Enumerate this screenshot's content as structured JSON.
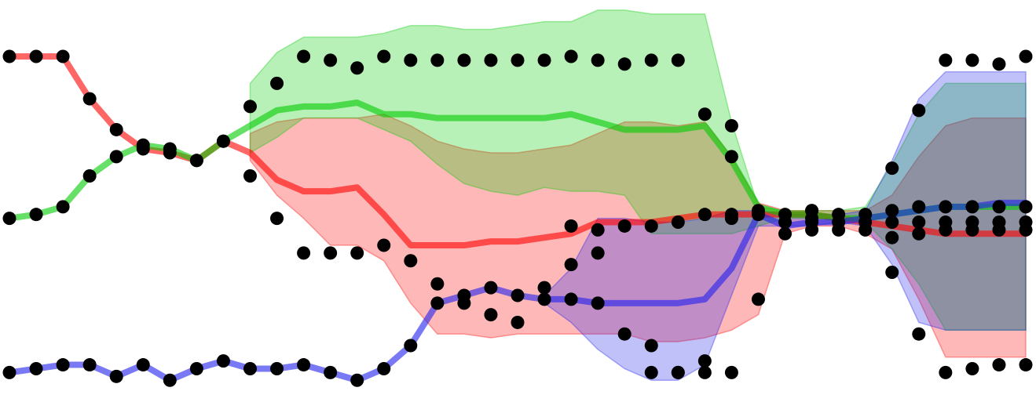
{
  "chart_data": {
    "type": "line",
    "x": [
      0,
      1,
      2,
      3,
      4,
      5,
      6,
      7,
      8,
      9,
      10,
      11,
      12,
      13,
      14,
      15,
      16,
      17,
      18,
      19,
      20,
      21,
      22,
      23,
      24,
      25,
      26,
      27,
      28,
      29,
      30,
      31,
      32,
      33,
      34,
      35,
      36,
      37,
      38
    ],
    "xlim": [
      0,
      38
    ],
    "ylim": [
      0,
      1
    ],
    "grid": false,
    "legend": "none",
    "series": [
      {
        "color": "#ff0000",
        "values": [
          0.87,
          0.87,
          0.87,
          0.76,
          0.68,
          0.63,
          0.62,
          0.6,
          0.65,
          0.62,
          0.55,
          0.52,
          0.52,
          0.53,
          0.46,
          0.38,
          0.38,
          0.38,
          0.39,
          0.39,
          0.4,
          0.41,
          0.44,
          0.44,
          0.44,
          0.45,
          0.46,
          0.46,
          0.46,
          0.46,
          0.46,
          0.45,
          0.44,
          0.43,
          0.42,
          0.41,
          0.41,
          0.41,
          0.41
        ],
        "lower": [
          null,
          null,
          null,
          null,
          null,
          null,
          null,
          null,
          null,
          0.6,
          0.51,
          0.45,
          0.38,
          0.38,
          0.34,
          0.23,
          0.15,
          0.15,
          0.14,
          0.15,
          0.15,
          0.15,
          0.15,
          0.15,
          0.13,
          0.13,
          0.14,
          0.16,
          0.2,
          0.41,
          0.43,
          0.43,
          0.41,
          0.37,
          0.24,
          0.09,
          0.09,
          0.09,
          0.09
        ],
        "upper": [
          null,
          null,
          null,
          null,
          null,
          null,
          null,
          null,
          null,
          0.67,
          0.7,
          0.71,
          0.71,
          0.71,
          0.72,
          0.69,
          0.65,
          0.63,
          0.62,
          0.62,
          0.63,
          0.64,
          0.67,
          0.7,
          0.7,
          0.69,
          0.7,
          0.61,
          0.49,
          0.47,
          0.47,
          0.47,
          0.47,
          0.51,
          0.61,
          0.69,
          0.71,
          0.71,
          0.71
        ],
        "markers": [
          0.87,
          0.87,
          0.87,
          0.76,
          0.68,
          0.63,
          0.62,
          0.6,
          0.65,
          0.56,
          0.45,
          0.36,
          0.36,
          0.36,
          0.38,
          0.34,
          0.28,
          0.23,
          0.2,
          0.18,
          0.27,
          0.43,
          0.42,
          0.43,
          0.43,
          0.44,
          0.46,
          0.46,
          0.46,
          0.44,
          0.44,
          0.44,
          0.44,
          0.44,
          0.44,
          0.44,
          0.44,
          0.44,
          0.44
        ]
      },
      {
        "color": "#00cc00",
        "values": [
          0.45,
          0.46,
          0.48,
          0.56,
          0.61,
          0.64,
          0.63,
          0.6,
          0.65,
          0.69,
          0.73,
          0.74,
          0.74,
          0.75,
          0.72,
          0.72,
          0.71,
          0.71,
          0.71,
          0.71,
          0.71,
          0.72,
          0.7,
          0.68,
          0.68,
          0.68,
          0.69,
          0.6,
          0.48,
          0.46,
          0.46,
          0.45,
          0.45,
          0.46,
          0.47,
          0.48,
          0.48,
          0.48,
          0.48
        ],
        "lower": [
          null,
          null,
          null,
          null,
          null,
          null,
          null,
          null,
          null,
          0.62,
          0.66,
          0.71,
          0.71,
          0.71,
          0.68,
          0.65,
          0.59,
          0.54,
          0.52,
          0.51,
          0.53,
          0.52,
          0.52,
          0.51,
          0.41,
          0.41,
          0.41,
          0.41,
          0.43,
          0.45,
          0.45,
          0.45,
          0.44,
          0.37,
          0.28,
          0.16,
          0.16,
          0.16,
          0.16
        ],
        "upper": [
          null,
          null,
          null,
          null,
          null,
          null,
          null,
          null,
          null,
          0.8,
          0.88,
          0.92,
          0.92,
          0.92,
          0.93,
          0.95,
          0.95,
          0.94,
          0.94,
          0.95,
          0.96,
          0.96,
          0.99,
          0.99,
          0.98,
          0.98,
          0.98,
          0.7,
          0.48,
          0.47,
          0.47,
          0.47,
          0.48,
          0.59,
          0.72,
          0.8,
          0.8,
          0.8,
          0.8
        ],
        "markers": [
          0.45,
          0.46,
          0.48,
          0.56,
          0.61,
          0.64,
          0.63,
          0.6,
          0.65,
          0.74,
          0.8,
          0.87,
          0.86,
          0.84,
          0.87,
          0.86,
          0.86,
          0.86,
          0.86,
          0.86,
          0.86,
          0.87,
          0.86,
          0.85,
          0.86,
          0.86,
          0.72,
          0.61,
          0.47,
          0.46,
          0.45,
          0.46,
          0.46,
          0.47,
          0.48,
          0.48,
          0.48,
          0.48,
          0.48
        ]
      },
      {
        "color": "#2020ee",
        "values": [
          0.05,
          0.06,
          0.07,
          0.07,
          0.04,
          0.07,
          0.03,
          0.06,
          0.08,
          0.06,
          0.06,
          0.07,
          0.05,
          0.03,
          0.06,
          0.12,
          0.23,
          0.25,
          0.27,
          0.25,
          0.24,
          0.24,
          0.23,
          0.23,
          0.23,
          0.23,
          0.24,
          0.32,
          0.46,
          0.43,
          0.44,
          0.44,
          0.45,
          0.46,
          0.47,
          0.48,
          0.48,
          0.49,
          0.49
        ],
        "lower": [
          null,
          null,
          null,
          null,
          null,
          null,
          null,
          null,
          null,
          null,
          null,
          null,
          null,
          null,
          null,
          null,
          null,
          null,
          null,
          null,
          0.23,
          0.18,
          0.11,
          0.06,
          0.03,
          0.03,
          0.07,
          0.25,
          0.43,
          0.43,
          0.43,
          0.44,
          0.43,
          0.33,
          0.18,
          0.16,
          0.16,
          0.16,
          0.16
        ],
        "upper": [
          null,
          null,
          null,
          null,
          null,
          null,
          null,
          null,
          null,
          null,
          null,
          null,
          null,
          null,
          null,
          null,
          null,
          null,
          null,
          null,
          0.25,
          0.32,
          0.45,
          0.45,
          0.44,
          0.44,
          0.45,
          0.47,
          0.47,
          0.46,
          0.46,
          0.46,
          0.47,
          0.6,
          0.76,
          0.83,
          0.83,
          0.83,
          0.83
        ],
        "markers": [
          0.05,
          0.06,
          0.07,
          0.07,
          0.04,
          0.07,
          0.03,
          0.06,
          0.08,
          0.06,
          0.06,
          0.07,
          0.05,
          0.03,
          0.06,
          0.12,
          0.23,
          0.25,
          0.27,
          0.25,
          0.24,
          0.24,
          0.23,
          0.15,
          0.05,
          0.05,
          0.05,
          0.05,
          0.24,
          0.41,
          0.42,
          0.42,
          0.42,
          0.4,
          0.41,
          0.42,
          0.42,
          0.42,
          0.42
        ]
      }
    ],
    "extra_points": [
      {
        "x": 27,
        "y": 0.69
      },
      {
        "x": 27,
        "y": 0.45
      },
      {
        "x": 30,
        "y": 0.47
      },
      {
        "x": 30,
        "y": 0.47
      },
      {
        "x": 33,
        "y": 0.31
      },
      {
        "x": 33,
        "y": 0.58
      },
      {
        "x": 34,
        "y": 0.15
      },
      {
        "x": 34,
        "y": 0.73
      },
      {
        "x": 35,
        "y": 0.05
      },
      {
        "x": 35,
        "y": 0.86
      },
      {
        "x": 36,
        "y": 0.06
      },
      {
        "x": 36,
        "y": 0.86
      },
      {
        "x": 37,
        "y": 0.07
      },
      {
        "x": 37,
        "y": 0.85
      },
      {
        "x": 38,
        "y": 0.07
      },
      {
        "x": 38,
        "y": 0.87
      },
      {
        "x": 24,
        "y": 0.12
      },
      {
        "x": 25,
        "y": 0.05
      },
      {
        "x": 26,
        "y": 0.08
      },
      {
        "x": 21,
        "y": 0.33
      },
      {
        "x": 22,
        "y": 0.36
      }
    ]
  }
}
